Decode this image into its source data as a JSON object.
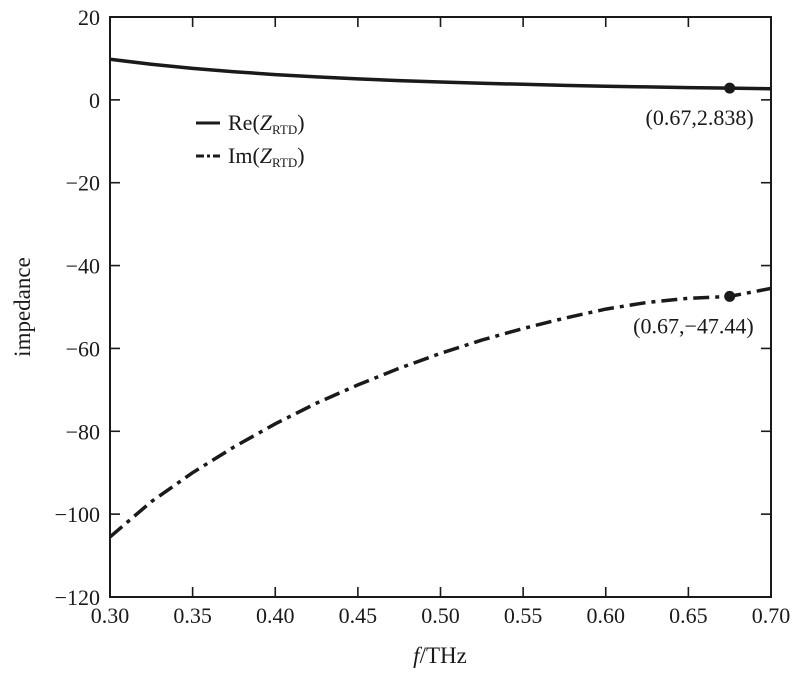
{
  "chart_data": {
    "type": "line",
    "title": "",
    "xlabel_italic": "f",
    "xlabel_rest": "/THz",
    "ylabel": "impedance",
    "xlim": [
      0.3,
      0.7
    ],
    "ylim": [
      -120,
      20
    ],
    "xticks": [
      0.3,
      0.35,
      0.4,
      0.45,
      0.5,
      0.55,
      0.6,
      0.65,
      0.7
    ],
    "xtick_labels": [
      "0.30",
      "0.35",
      "0.40",
      "0.45",
      "0.50",
      "0.55",
      "0.60",
      "0.65",
      "0.70"
    ],
    "yticks": [
      20,
      0,
      -20,
      -40,
      -60,
      -80,
      -100,
      -120
    ],
    "ytick_labels": [
      "20",
      "0",
      "−20",
      "−40",
      "−60",
      "−80",
      "−100",
      "−120"
    ],
    "grid": false,
    "legend_placement": "upper-left",
    "line_color": "#1a1a1a",
    "series": [
      {
        "name": "Re(ZRTD)",
        "legend_prefix": "Re(",
        "legend_italic": "Z",
        "legend_sub": "RTD",
        "legend_suffix": ")",
        "style": "solid",
        "x": [
          0.3,
          0.325,
          0.35,
          0.375,
          0.4,
          0.425,
          0.45,
          0.475,
          0.5,
          0.525,
          0.55,
          0.575,
          0.6,
          0.625,
          0.65,
          0.675,
          0.7
        ],
        "y": [
          9.8,
          8.6,
          7.6,
          6.8,
          6.1,
          5.55,
          5.05,
          4.65,
          4.3,
          4.0,
          3.75,
          3.5,
          3.3,
          3.12,
          2.97,
          2.84,
          2.7
        ]
      },
      {
        "name": "Im(ZRTD)",
        "legend_prefix": "Im(",
        "legend_italic": "Z",
        "legend_sub": "RTD",
        "legend_suffix": ")",
        "style": "dashdot",
        "x": [
          0.3,
          0.325,
          0.35,
          0.375,
          0.4,
          0.425,
          0.45,
          0.475,
          0.5,
          0.525,
          0.55,
          0.575,
          0.6,
          0.625,
          0.65,
          0.675,
          0.7
        ],
        "y": [
          -105.5,
          -97.0,
          -90.0,
          -83.8,
          -78.2,
          -73.2,
          -68.8,
          -64.8,
          -61.2,
          -58.0,
          -55.2,
          -52.7,
          -50.5,
          -48.9,
          -47.9,
          -47.44,
          -45.5
        ]
      }
    ],
    "annotations": [
      {
        "x": 0.675,
        "y": 2.838,
        "text": "(0.67,2.838)"
      },
      {
        "x": 0.675,
        "y": -47.44,
        "text": "(0.67,−47.44)"
      }
    ]
  }
}
